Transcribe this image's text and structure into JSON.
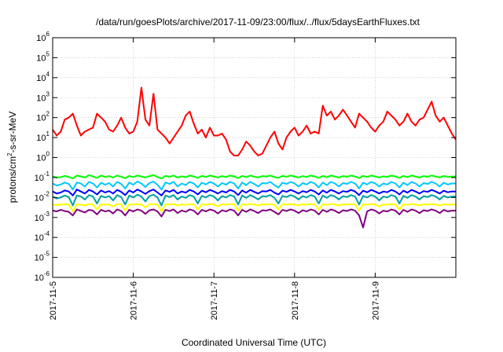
{
  "chart_data": {
    "type": "line",
    "title": "/data/run/goesPlots/archive/2017-11-09/23:00/flux/../flux/5daysEarthFluxes.txt",
    "xlabel": "Coordinated Universal Time (UTC)",
    "ylabel": {
      "pre": "protons/cm",
      "sup": "2",
      "post": "-s-sr-MeV"
    },
    "log_scale_y": true,
    "grid": true,
    "x_ticks": [
      "2017-11-5",
      "2017-11-6",
      "2017-11-7",
      "2017-11-8",
      "2017-11-9"
    ],
    "xlim_days": [
      0,
      5
    ],
    "y_ticks": [
      {
        "base": "10",
        "exp": "-6"
      },
      {
        "base": "10",
        "exp": "-5"
      },
      {
        "base": "10",
        "exp": "-4"
      },
      {
        "base": "10",
        "exp": "-3"
      },
      {
        "base": "10",
        "exp": "-2"
      },
      {
        "base": "10",
        "exp": "-1"
      },
      {
        "base": "10",
        "exp": "0"
      },
      {
        "base": "10",
        "exp": "1"
      },
      {
        "base": "10",
        "exp": "2"
      },
      {
        "base": "10",
        "exp": "3"
      },
      {
        "base": "10",
        "exp": "4"
      },
      {
        "base": "10",
        "exp": "5"
      },
      {
        "base": "10",
        "exp": "6"
      }
    ],
    "ylim_log10": [
      -6,
      6
    ],
    "series": [
      {
        "color": "#ff0000",
        "log10": [
          1.4,
          1.1,
          1.3,
          1.9,
          2.0,
          2.2,
          1.6,
          1.1,
          1.3,
          1.4,
          1.5,
          2.2,
          2.0,
          1.8,
          1.4,
          1.3,
          1.6,
          2.0,
          1.5,
          1.2,
          1.3,
          1.8,
          3.5,
          1.9,
          1.6,
          3.2,
          1.4,
          1.2,
          1.0,
          0.7,
          1.0,
          1.3,
          1.6,
          2.1,
          2.3,
          1.7,
          1.2,
          1.4,
          1.0,
          1.5,
          1.1,
          1.1,
          1.2,
          0.9,
          0.3,
          0.1,
          0.1,
          0.4,
          0.8,
          0.6,
          0.3,
          0.1,
          0.2,
          0.6,
          1.0,
          1.3,
          0.7,
          0.4,
          1.0,
          1.3,
          1.5,
          1.1,
          1.3,
          1.6,
          1.2,
          1.3,
          1.2,
          2.6,
          2.1,
          2.3,
          1.9,
          2.1,
          2.4,
          2.1,
          1.8,
          1.5,
          2.2,
          2.0,
          1.8,
          1.5,
          1.3,
          1.6,
          1.8,
          2.3,
          2.1,
          1.9,
          1.6,
          1.8,
          2.2,
          1.8,
          1.6,
          1.9,
          2.0,
          2.4,
          2.8,
          2.1,
          1.8,
          2.0,
          1.6,
          1.2,
          0.9
        ]
      },
      {
        "color": "#00ff00",
        "log10": [
          -0.95,
          -1.0,
          -0.98,
          -0.92,
          -0.97,
          -1.05,
          -0.9,
          -0.95,
          -1.0,
          -0.88,
          -0.95,
          -1.02,
          -0.9,
          -0.97,
          -0.93,
          -1.0,
          -0.9,
          -0.96,
          -1.04,
          -0.92,
          -0.98,
          -0.9,
          -0.95,
          -1.0,
          -0.93,
          -0.88,
          -0.97,
          -1.05,
          -0.92,
          -0.96,
          -0.9,
          -1.0,
          -0.94,
          -0.98,
          -0.9,
          -0.95,
          -1.02,
          -0.92,
          -0.97,
          -0.9,
          -0.95,
          -1.0,
          -0.93,
          -0.97,
          -0.9,
          -0.95,
          -1.03,
          -0.92,
          -0.98,
          -0.9,
          -0.96,
          -1.0,
          -0.93,
          -0.95,
          -0.9,
          -0.98,
          -1.02,
          -0.92,
          -0.96,
          -0.9,
          -0.95,
          -1.0,
          -0.93,
          -0.97,
          -0.9,
          -0.95,
          -1.02,
          -0.92,
          -0.98,
          -0.9,
          -0.95,
          -1.0,
          -0.93,
          -0.96,
          -0.9,
          -0.95,
          -1.03,
          -0.92,
          -0.97,
          -0.9,
          -0.95,
          -1.0,
          -0.94,
          -0.97,
          -0.9,
          -0.95,
          -1.02,
          -0.92,
          -0.98,
          -0.9,
          -0.95,
          -1.0,
          -0.93,
          -0.96,
          -0.9,
          -0.95,
          -1.0,
          -0.92,
          -0.97,
          -0.95,
          -0.95
        ]
      },
      {
        "color": "#0000ff",
        "log10": [
          -1.7,
          -1.8,
          -1.75,
          -1.65,
          -1.7,
          -1.9,
          -1.6,
          -1.7,
          -1.8,
          -1.62,
          -1.7,
          -1.85,
          -1.65,
          -1.75,
          -1.68,
          -1.8,
          -1.62,
          -1.72,
          -1.88,
          -1.65,
          -1.75,
          -1.6,
          -1.7,
          -1.82,
          -1.68,
          -1.6,
          -1.75,
          -1.9,
          -1.65,
          -1.72,
          -1.62,
          -1.8,
          -1.7,
          -1.76,
          -1.62,
          -1.7,
          -1.85,
          -1.66,
          -1.74,
          -1.62,
          -1.7,
          -1.8,
          -1.68,
          -1.75,
          -1.62,
          -1.7,
          -1.88,
          -1.65,
          -1.76,
          -1.62,
          -1.72,
          -1.8,
          -1.68,
          -1.7,
          -1.62,
          -1.76,
          -1.85,
          -1.66,
          -1.72,
          -1.62,
          -1.7,
          -1.8,
          -1.68,
          -1.74,
          -1.62,
          -1.7,
          -1.85,
          -1.65,
          -1.76,
          -1.62,
          -1.7,
          -1.8,
          -1.68,
          -1.72,
          -1.62,
          -1.7,
          -1.88,
          -1.66,
          -1.74,
          -1.62,
          -1.7,
          -1.8,
          -1.7,
          -1.74,
          -1.62,
          -1.7,
          -1.85,
          -1.66,
          -1.76,
          -1.62,
          -1.7,
          -1.8,
          -1.68,
          -1.72,
          -1.62,
          -1.7,
          -1.8,
          -1.66,
          -1.74,
          -1.7,
          -1.7
        ]
      },
      {
        "color": "#00c8ff",
        "log10": [
          -1.3,
          -1.4,
          -1.35,
          -1.25,
          -1.32,
          -1.6,
          -1.25,
          -1.3,
          -1.45,
          -1.22,
          -1.3,
          -1.5,
          -1.26,
          -1.36,
          -1.28,
          -1.45,
          -1.22,
          -1.32,
          -1.55,
          -1.25,
          -1.36,
          -1.2,
          -1.3,
          -1.48,
          -1.28,
          -1.2,
          -1.36,
          -1.6,
          -1.25,
          -1.32,
          -1.22,
          -1.45,
          -1.3,
          -1.38,
          -1.22,
          -1.3,
          -1.5,
          -1.26,
          -1.35,
          -1.22,
          -1.3,
          -1.45,
          -1.28,
          -1.36,
          -1.22,
          -1.3,
          -1.55,
          -1.25,
          -1.38,
          -1.22,
          -1.32,
          -1.45,
          -1.28,
          -1.3,
          -1.22,
          -1.38,
          -1.5,
          -1.26,
          -1.32,
          -1.22,
          -1.3,
          -1.45,
          -1.28,
          -1.35,
          -1.22,
          -1.3,
          -1.5,
          -1.25,
          -1.38,
          -1.22,
          -1.3,
          -1.45,
          -1.28,
          -1.32,
          -1.22,
          -1.3,
          -1.55,
          -1.26,
          -1.35,
          -1.22,
          -1.3,
          -1.45,
          -1.3,
          -1.35,
          -1.22,
          -1.3,
          -1.5,
          -1.26,
          -1.38,
          -1.22,
          -1.3,
          -1.45,
          -1.28,
          -1.32,
          -1.22,
          -1.3,
          -1.45,
          -1.26,
          -1.35,
          -1.3,
          -1.3
        ]
      },
      {
        "color": "#00a0a0",
        "log10": [
          -1.95,
          -2.05,
          -2.0,
          -1.9,
          -1.98,
          -2.4,
          -1.9,
          -1.95,
          -2.1,
          -1.88,
          -1.95,
          -2.3,
          -1.92,
          -2.0,
          -1.93,
          -2.15,
          -1.88,
          -1.98,
          -2.35,
          -1.9,
          -2.0,
          -1.86,
          -1.95,
          -2.2,
          -1.93,
          -1.86,
          -2.0,
          -2.4,
          -1.9,
          -1.98,
          -1.88,
          -2.1,
          -1.95,
          -2.02,
          -1.88,
          -1.95,
          -2.3,
          -1.92,
          -2.0,
          -1.88,
          -1.95,
          -2.15,
          -1.93,
          -2.0,
          -1.88,
          -1.95,
          -2.35,
          -1.9,
          -2.02,
          -1.88,
          -1.98,
          -2.1,
          -1.93,
          -1.95,
          -1.88,
          -2.02,
          -2.3,
          -1.92,
          -1.98,
          -1.88,
          -1.95,
          -2.1,
          -1.93,
          -2.0,
          -1.88,
          -1.95,
          -2.3,
          -1.9,
          -2.02,
          -1.88,
          -1.95,
          -2.1,
          -1.93,
          -1.98,
          -1.88,
          -1.95,
          -2.35,
          -1.92,
          -2.0,
          -1.88,
          -1.95,
          -2.15,
          -1.95,
          -2.0,
          -1.88,
          -1.95,
          -2.3,
          -1.92,
          -2.02,
          -1.88,
          -1.95,
          -2.1,
          -1.93,
          -1.98,
          -1.88,
          -1.95,
          -2.1,
          -1.92,
          -2.0,
          -1.95,
          -1.95
        ]
      },
      {
        "color": "#ffff00",
        "log10": [
          -2.35,
          -2.38,
          -2.36,
          -2.34,
          -2.35,
          -2.7,
          -2.34,
          -2.36,
          -2.4,
          -2.33,
          -2.35,
          -2.6,
          -2.34,
          -2.36,
          -2.35,
          -2.45,
          -2.33,
          -2.35,
          -2.65,
          -2.34,
          -2.36,
          -2.33,
          -2.35,
          -2.5,
          -2.34,
          -2.33,
          -2.36,
          -2.7,
          -2.34,
          -2.35,
          -2.33,
          -2.4,
          -2.35,
          -2.37,
          -2.33,
          -2.35,
          -2.6,
          -2.34,
          -2.36,
          -2.33,
          -2.35,
          -2.45,
          -2.34,
          -2.36,
          -2.33,
          -2.35,
          -2.65,
          -2.34,
          -2.37,
          -2.33,
          -2.35,
          -2.4,
          -2.34,
          -2.35,
          -2.33,
          -2.37,
          -2.6,
          -2.34,
          -2.35,
          -2.33,
          -2.35,
          -2.4,
          -2.34,
          -2.36,
          -2.33,
          -2.35,
          -2.6,
          -2.34,
          -2.37,
          -2.33,
          -2.35,
          -2.4,
          -2.34,
          -2.35,
          -2.33,
          -2.35,
          -2.65,
          -2.34,
          -2.36,
          -2.33,
          -2.35,
          -2.45,
          -2.35,
          -2.36,
          -2.33,
          -2.35,
          -2.6,
          -2.34,
          -2.37,
          -2.33,
          -2.35,
          -2.4,
          -2.34,
          -2.35,
          -2.33,
          -2.35,
          -2.4,
          -2.34,
          -2.36,
          -2.35,
          -2.35
        ]
      },
      {
        "color": "#800080",
        "log10": [
          -2.65,
          -2.7,
          -2.62,
          -2.68,
          -2.72,
          -2.9,
          -2.6,
          -2.68,
          -2.75,
          -2.62,
          -2.66,
          -2.85,
          -2.62,
          -2.7,
          -2.65,
          -2.8,
          -2.6,
          -2.68,
          -2.9,
          -2.62,
          -2.7,
          -2.6,
          -2.66,
          -2.82,
          -2.64,
          -2.6,
          -2.7,
          -2.95,
          -2.62,
          -2.68,
          -2.6,
          -2.78,
          -2.65,
          -2.72,
          -2.6,
          -2.66,
          -2.85,
          -2.62,
          -2.7,
          -2.6,
          -2.66,
          -2.8,
          -2.64,
          -2.7,
          -2.6,
          -2.66,
          -2.9,
          -2.62,
          -2.72,
          -2.6,
          -2.68,
          -2.78,
          -2.64,
          -2.66,
          -2.6,
          -2.72,
          -2.85,
          -2.62,
          -2.68,
          -2.6,
          -2.66,
          -2.78,
          -2.64,
          -2.7,
          -2.6,
          -2.66,
          -2.85,
          -2.62,
          -2.72,
          -2.6,
          -2.66,
          -2.78,
          -2.64,
          -2.68,
          -2.6,
          -2.66,
          -2.9,
          -3.5,
          -2.7,
          -2.6,
          -2.66,
          -2.8,
          -2.66,
          -2.7,
          -2.6,
          -2.66,
          -2.85,
          -2.62,
          -2.72,
          -2.6,
          -2.66,
          -2.78,
          -2.64,
          -2.68,
          -2.6,
          -2.66,
          -2.78,
          -2.62,
          -2.7,
          -2.66,
          -2.66
        ]
      }
    ]
  }
}
